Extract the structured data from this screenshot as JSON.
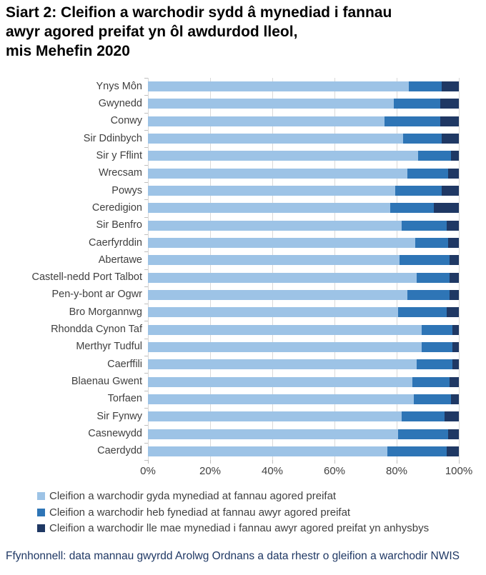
{
  "title": {
    "line1": "Siart 2: Cleifion a warchodir sydd â mynediad i fannau",
    "line2": "awyr agored preifat yn ôl awdurdod lleol,",
    "line3": "mis Mehefin 2020"
  },
  "chart_data": {
    "type": "bar",
    "orientation": "horizontal",
    "stacked": true,
    "grid": true,
    "legend_position": "bottom",
    "xlim": [
      0,
      100
    ],
    "x_ticks": [
      "0%",
      "20%",
      "40%",
      "60%",
      "80%",
      "100%"
    ],
    "categories": [
      "Ynys Môn",
      "Gwynedd",
      "Conwy",
      "Sir Ddinbych",
      "Sir y Fflint",
      "Wrecsam",
      "Powys",
      "Ceredigion",
      "Sir Benfro",
      "Caerfyrddin",
      "Abertawe",
      "Castell-nedd Port Talbot",
      "Pen-y-bont ar Ogwr",
      "Bro Morgannwg",
      "Rhondda Cynon Taf",
      "Merthyr Tudful",
      "Caerffili",
      "Blaenau Gwent",
      "Torfaen",
      "Sir Fynwy",
      "Casnewydd",
      "Caerdydd"
    ],
    "series": [
      {
        "name": "Cleifion a warchodir gyda mynediad at fannau agored preifat",
        "color": "#9dc3e6",
        "values": [
          84,
          79,
          76,
          82,
          87,
          83.5,
          79.5,
          78,
          81.5,
          86,
          81,
          86.5,
          83.5,
          80.5,
          88,
          88,
          86.5,
          85,
          85.5,
          81.5,
          80.5,
          77
        ]
      },
      {
        "name": "Cleifion a warchodir heb fynediad at fannau awyr agored preifat",
        "color": "#2e75b6",
        "values": [
          10.5,
          15,
          18,
          12.5,
          10.5,
          13,
          15,
          14,
          14.5,
          10.5,
          16,
          10.5,
          13.5,
          15.5,
          10,
          10,
          11.5,
          12,
          12,
          14,
          16,
          19
        ]
      },
      {
        "name": "Cleifion a warchodir lle mae mynediad i fannau awyr agored preifat yn anhysbys",
        "color": "#1f3864",
        "values": [
          5.5,
          6,
          6,
          5.5,
          2.5,
          3.5,
          5.5,
          8,
          4,
          3.5,
          3,
          3,
          3,
          4,
          2,
          2,
          2,
          3,
          2.5,
          4.5,
          3.5,
          4
        ]
      }
    ]
  },
  "footer": {
    "source": "Ffynhonnell: data mannau gwyrdd Arolwg Ordnans a data rhestr o gleifion a warchodir NWIS"
  },
  "colors": {
    "gridline": "#d9d9d9",
    "axis_text": "#404040",
    "title_text": "#000000",
    "footer_text": "#1f3864",
    "background": "#ffffff"
  }
}
